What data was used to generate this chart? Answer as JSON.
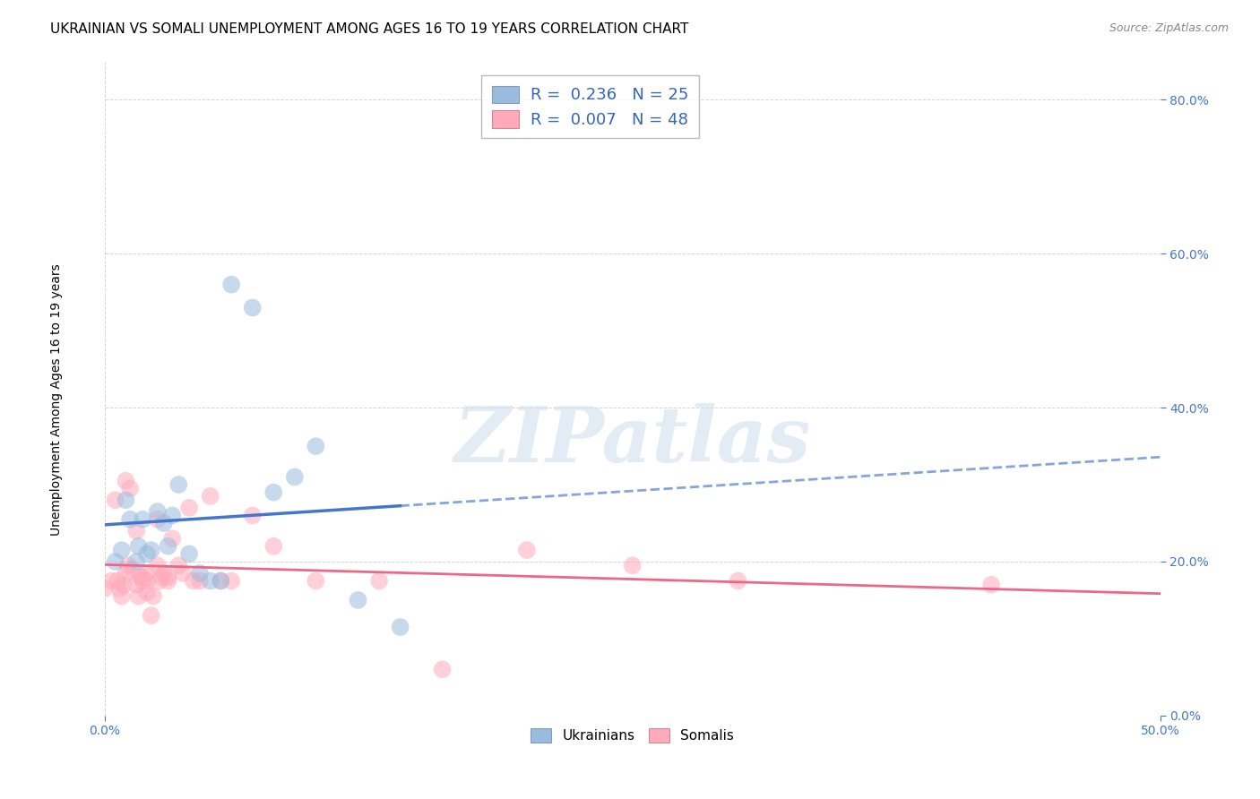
{
  "title": "UKRAINIAN VS SOMALI UNEMPLOYMENT AMONG AGES 16 TO 19 YEARS CORRELATION CHART",
  "source": "Source: ZipAtlas.com",
  "ylabel": "Unemployment Among Ages 16 to 19 years",
  "xlim": [
    0.0,
    0.5
  ],
  "ylim": [
    0.0,
    0.85
  ],
  "xticks": [
    0.0,
    0.5
  ],
  "yticks": [
    0.0,
    0.2,
    0.4,
    0.6,
    0.8
  ],
  "xticklabels": [
    "0.0%",
    "50.0%"
  ],
  "yticklabels": [
    "0.0%",
    "20.0%",
    "40.0%",
    "60.0%",
    "80.0%"
  ],
  "legend_entries": [
    {
      "label": "R =  0.236   N = 25",
      "color": "#99BBDD"
    },
    {
      "label": "R =  0.007   N = 48",
      "color": "#FFAABB"
    }
  ],
  "ukr_color": "#99BBDD",
  "ukr_line_color": "#4477CC",
  "som_color": "#FFAABB",
  "som_line_color": "#EE6688",
  "ukrainians_x": [
    0.005,
    0.008,
    0.01,
    0.012,
    0.015,
    0.016,
    0.018,
    0.02,
    0.022,
    0.025,
    0.028,
    0.03,
    0.032,
    0.035,
    0.04,
    0.045,
    0.05,
    0.055,
    0.06,
    0.07,
    0.08,
    0.09,
    0.1,
    0.12,
    0.14
  ],
  "ukrainians_y": [
    0.2,
    0.215,
    0.28,
    0.255,
    0.2,
    0.22,
    0.255,
    0.21,
    0.215,
    0.265,
    0.25,
    0.22,
    0.26,
    0.3,
    0.21,
    0.185,
    0.175,
    0.175,
    0.56,
    0.53,
    0.29,
    0.31,
    0.35,
    0.15,
    0.115
  ],
  "somalis_x": [
    0.0,
    0.003,
    0.005,
    0.006,
    0.007,
    0.008,
    0.009,
    0.01,
    0.01,
    0.011,
    0.012,
    0.013,
    0.015,
    0.015,
    0.016,
    0.017,
    0.018,
    0.018,
    0.02,
    0.02,
    0.02,
    0.022,
    0.023,
    0.025,
    0.025,
    0.026,
    0.027,
    0.028,
    0.03,
    0.03,
    0.032,
    0.035,
    0.037,
    0.04,
    0.042,
    0.045,
    0.05,
    0.055,
    0.06,
    0.07,
    0.08,
    0.1,
    0.13,
    0.16,
    0.2,
    0.25,
    0.3,
    0.42
  ],
  "somalis_y": [
    0.165,
    0.175,
    0.28,
    0.175,
    0.165,
    0.155,
    0.17,
    0.305,
    0.185,
    0.195,
    0.295,
    0.19,
    0.24,
    0.17,
    0.155,
    0.18,
    0.175,
    0.18,
    0.175,
    0.185,
    0.16,
    0.13,
    0.155,
    0.255,
    0.195,
    0.175,
    0.18,
    0.185,
    0.175,
    0.18,
    0.23,
    0.195,
    0.185,
    0.27,
    0.175,
    0.175,
    0.285,
    0.175,
    0.175,
    0.26,
    0.22,
    0.175,
    0.175,
    0.06,
    0.215,
    0.195,
    0.175,
    0.17
  ],
  "watermark": "ZIPatlas",
  "background_color": "#FFFFFF",
  "grid_color": "#BBBBBB"
}
